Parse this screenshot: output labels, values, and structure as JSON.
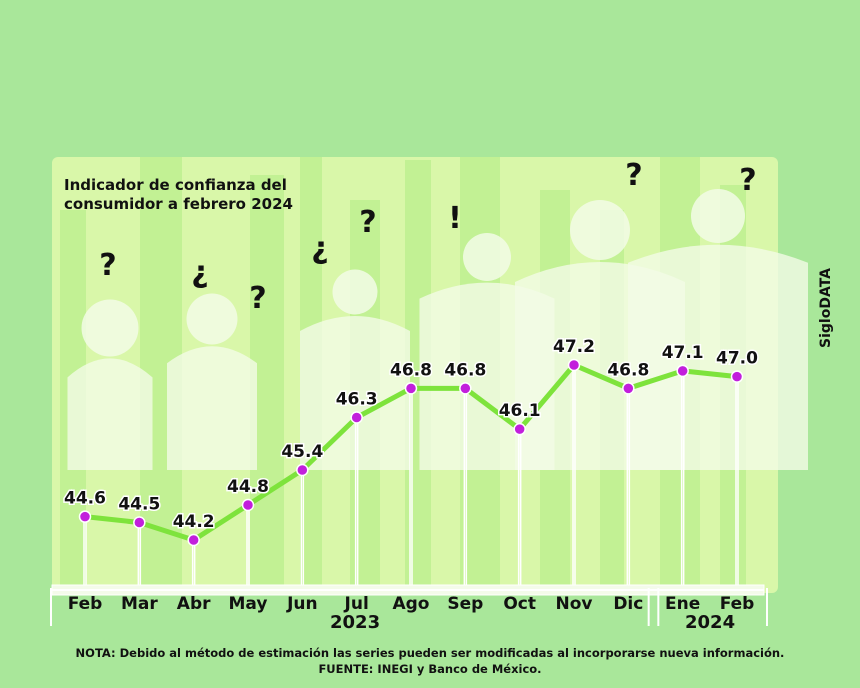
{
  "chart_data": {
    "type": "line",
    "title_line1": "Indicador de confianza del",
    "title_line2": "consumidor a febrero 2024",
    "categories": [
      "Feb",
      "Mar",
      "Abr",
      "May",
      "Jun",
      "Jul",
      "Ago",
      "Sep",
      "Oct",
      "Nov",
      "Dic",
      "Ene",
      "Feb"
    ],
    "values": [
      44.6,
      44.5,
      44.2,
      44.8,
      45.4,
      46.3,
      46.8,
      46.8,
      46.1,
      47.2,
      46.8,
      47.1,
      47.0
    ],
    "value_labels": [
      "44.6",
      "44.5",
      "44.2",
      "44.8",
      "45.4",
      "46.3",
      "46.8",
      "46.8",
      "46.1",
      "47.2",
      "46.8",
      "47.1",
      "47.0"
    ],
    "year_groups": [
      {
        "label": "2023",
        "from": 0,
        "to": 10
      },
      {
        "label": "2024",
        "from": 11,
        "to": 12
      }
    ],
    "ylim": [
      44.0,
      47.4
    ],
    "colors": {
      "line": "#7ee33c",
      "point": "#c21fdc",
      "background": "#a9e79a",
      "panel": "#d9f7a9"
    }
  },
  "brand": "SigloDATA",
  "footer": {
    "note": "NOTA: Debido al método de estimación las series pueden ser modificadas al incorporarse nueva información.",
    "source": "FUENTE: INEGI y Banco de México."
  },
  "decor": {
    "marks": [
      "?",
      "¿",
      "?",
      "¿",
      "?",
      "!",
      "?",
      "?"
    ]
  }
}
